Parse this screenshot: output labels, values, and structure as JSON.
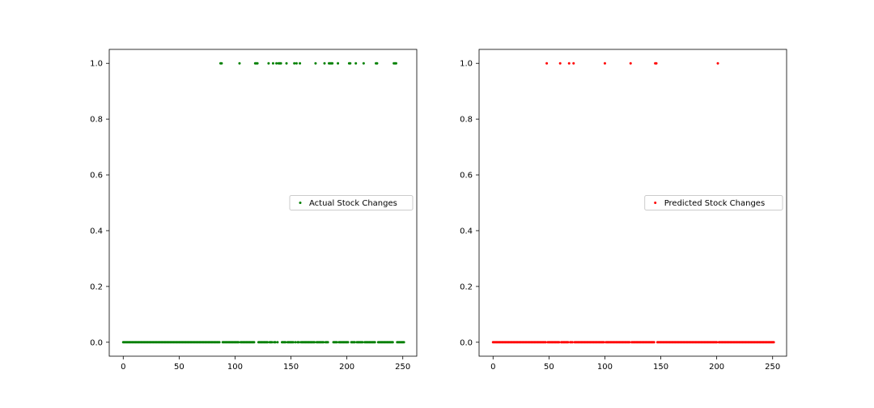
{
  "chart_data": [
    {
      "type": "scatter",
      "legend_placement": "center-right",
      "grid": false,
      "xlim": [
        -12.5,
        262.5
      ],
      "ylim": [
        -0.05,
        1.05
      ],
      "xticks": [
        0,
        50,
        100,
        150,
        200,
        250
      ],
      "yticks": [
        0.0,
        0.2,
        0.4,
        0.6,
        0.8,
        1.0
      ],
      "series": [
        {
          "name": "Actual Stock Changes",
          "color": "#008000",
          "n_points": 252,
          "ones_x": [
            87,
            88,
            104,
            118,
            119,
            120,
            130,
            134,
            137,
            139,
            140,
            141,
            146,
            153,
            155,
            158,
            172,
            180,
            184,
            185,
            186,
            187,
            192,
            202,
            203,
            208,
            215,
            226,
            227,
            242,
            243,
            244
          ]
        }
      ]
    },
    {
      "type": "scatter",
      "legend_placement": "center-right",
      "grid": false,
      "xlim": [
        -12.5,
        262.5
      ],
      "ylim": [
        -0.05,
        1.05
      ],
      "xticks": [
        0,
        50,
        100,
        150,
        200,
        250
      ],
      "yticks": [
        0.0,
        0.2,
        0.4,
        0.6,
        0.8,
        1.0
      ],
      "series": [
        {
          "name": "Predicted Stock Changes",
          "color": "#ff0000",
          "n_points": 252,
          "ones_x": [
            48,
            60,
            68,
            72,
            100,
            123,
            145,
            146,
            201
          ]
        }
      ]
    }
  ]
}
